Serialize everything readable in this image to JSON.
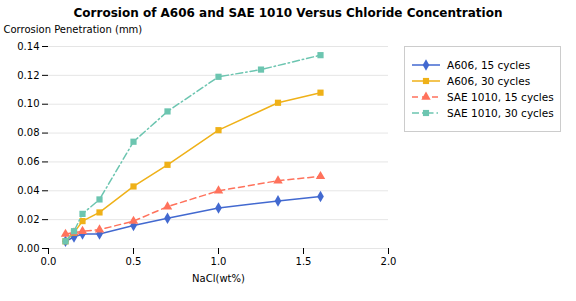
{
  "chart_data": {
    "type": "line",
    "title": "Corrosion of A606 and SAE 1010 Versus Chloride Concentration",
    "xlabel": "NaCl(wt%)",
    "ylabel": "Corrosion Penetration (mm)",
    "xlim": [
      0,
      2
    ],
    "ylim": [
      0,
      0.14
    ],
    "xticks": [
      {
        "value": 0,
        "label": "0.0"
      },
      0.5,
      {
        "value": 1.0,
        "label": "1.0"
      },
      1.5,
      {
        "value": 2.0,
        "label": "2.0"
      }
    ],
    "yticks": [
      {
        "value": 0,
        "label": "0.00"
      },
      {
        "value": 0.02,
        "label": "0.02"
      },
      {
        "value": 0.04,
        "label": "0.04"
      },
      {
        "value": 0.06,
        "label": "0.06"
      },
      {
        "value": 0.08,
        "label": "0.08"
      },
      {
        "value": 0.1,
        "label": "0.10"
      },
      {
        "value": 0.12,
        "label": "0.12"
      },
      {
        "value": 0.14,
        "label": "0.14"
      }
    ],
    "grid": "y",
    "legend": "right",
    "series": [
      {
        "name": "A606, 15 cycles",
        "marker": "diamond",
        "line_style": "solid",
        "x": [
          0.1,
          0.15,
          0.2,
          0.3,
          0.5,
          0.7,
          1.0,
          1.35,
          1.6
        ],
        "values": [
          0.005,
          0.008,
          0.01,
          0.01,
          0.016,
          0.021,
          0.028,
          0.033,
          0.036
        ]
      },
      {
        "name": "A606, 30 cycles",
        "marker": "square",
        "line_style": "solid",
        "x": [
          0.1,
          0.15,
          0.2,
          0.3,
          0.5,
          0.7,
          1.0,
          1.35,
          1.6
        ],
        "values": [
          0.005,
          0.011,
          0.019,
          0.025,
          0.043,
          0.058,
          0.082,
          0.101,
          0.108
        ]
      },
      {
        "name": "SAE 1010, 15 cycles",
        "marker": "triangle",
        "line_style": "dashed",
        "x": [
          0.1,
          0.15,
          0.2,
          0.3,
          0.5,
          0.7,
          1.0,
          1.35,
          1.6
        ],
        "values": [
          0.01,
          0.011,
          0.012,
          0.013,
          0.019,
          0.029,
          0.04,
          0.047,
          0.05
        ]
      },
      {
        "name": "SAE 1010, 30 cycles",
        "marker": "square",
        "line_style": "dashdot",
        "x": [
          0.1,
          0.15,
          0.2,
          0.3,
          0.5,
          0.7,
          1.0,
          1.25,
          1.6
        ],
        "values": [
          0.005,
          0.012,
          0.024,
          0.034,
          0.074,
          0.095,
          0.119,
          0.124,
          0.134
        ]
      }
    ]
  }
}
